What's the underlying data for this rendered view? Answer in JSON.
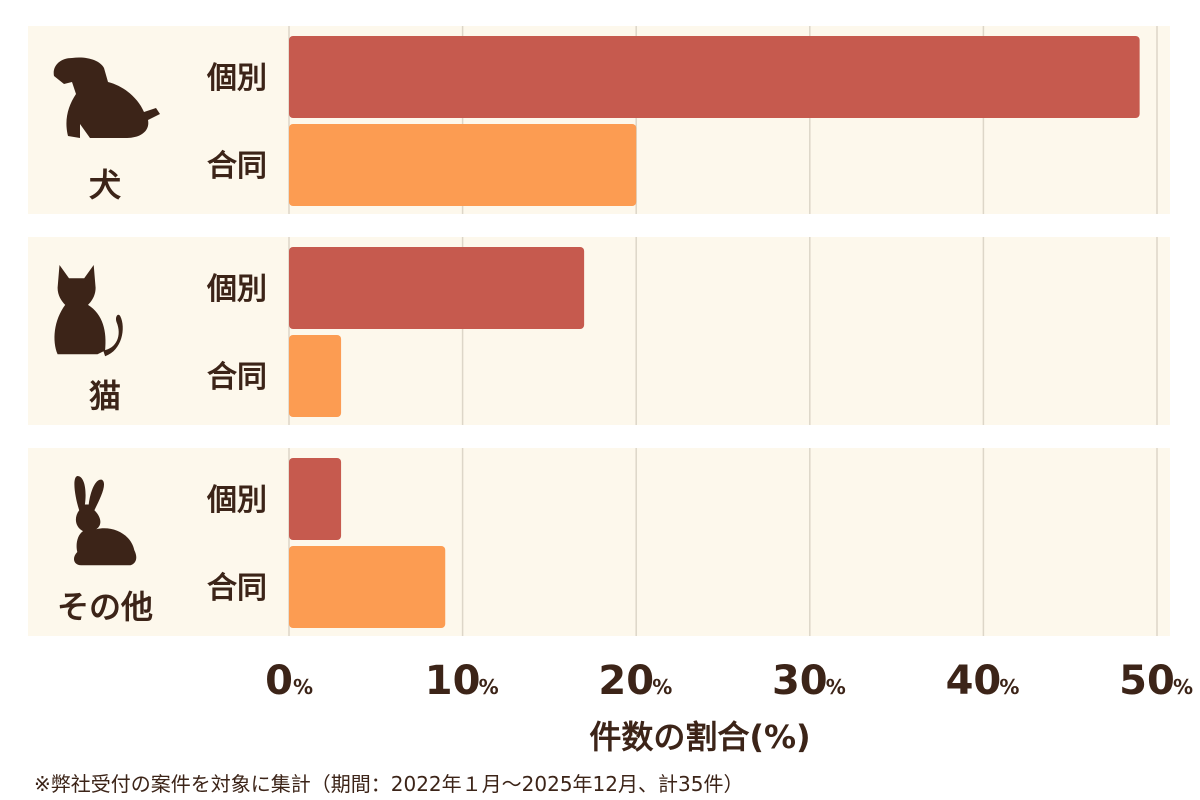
{
  "chart_data": {
    "type": "bar",
    "orientation": "horizontal",
    "categories": [
      "犬",
      "猫",
      "その他"
    ],
    "series": [
      {
        "name": "個別",
        "color": "#c65a4e",
        "values": [
          49,
          17,
          3
        ]
      },
      {
        "name": "合同",
        "color": "#fc9c52",
        "values": [
          20,
          3,
          9
        ]
      }
    ],
    "icons": [
      "dog-icon",
      "cat-icon",
      "rabbit-icon"
    ],
    "xlabel": "件数の割合(%)",
    "xlim": [
      0,
      50
    ],
    "ticks": [
      "0",
      "10",
      "20",
      "30",
      "40",
      "50"
    ],
    "tick_unit": "%",
    "grid": true,
    "colors": {
      "background": "#fdf8ec",
      "text": "#3c2418",
      "grid": "#ddd6c8"
    }
  },
  "footnote": "※弊社受付の案件を対象に集計（期間：2022年１月～2025年12月、計35件）"
}
